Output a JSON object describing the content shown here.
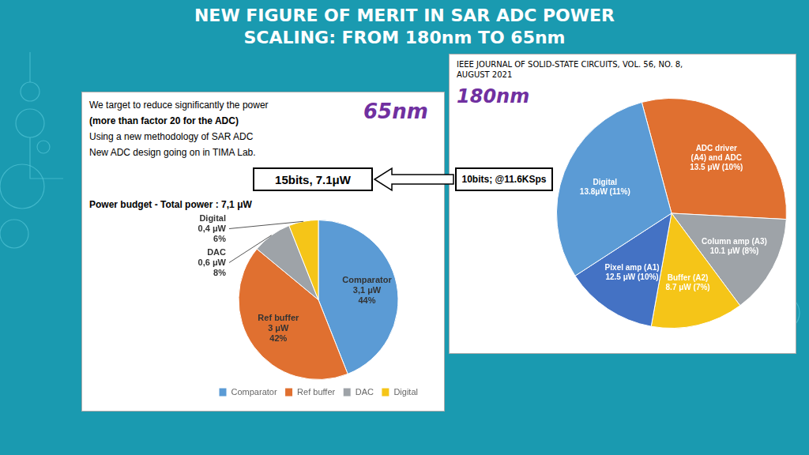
{
  "chart_data": [
    {
      "type": "pie",
      "title": "Power budget - Total power : 7,1 μW",
      "subtitle": "65nm",
      "categories": [
        "Comparator",
        "Ref buffer",
        "DAC",
        "Digital"
      ],
      "values": [
        44,
        42,
        8,
        6
      ],
      "value_labels": [
        "3,1 μW\n44%",
        "3 μW\n42%",
        "0,6 μW\n8%",
        "0,4 μW\n6%"
      ],
      "colors": [
        "#5b9bd5",
        "#e07030",
        "#9ea3a8",
        "#f5c518"
      ],
      "legend": "bottom",
      "data_labels": true,
      "annotations": [
        "NEW FIGURE OF MERIT IN SAR ADC POWER",
        "SCALING: FROM 180nm TO 65nm",
        "We target to reduce significantly the power",
        "(more than factor 20 for the ADC)",
        "Using a new methodology of SAR ADC",
        "New ADC design going on in TIMA Lab.",
        "15bits, 7.1μW"
      ]
    },
    {
      "type": "pie",
      "subtitle": "180nm",
      "categories": [
        "ADC driver\n(A4) and ADC",
        "Column amp (A3)",
        "Buffer (A2)",
        "Pixel amp (A1)",
        "Digital"
      ],
      "values": [
        30,
        14,
        13,
        13,
        30
      ],
      "value_labels": [
        "13.5 μW (10%)",
        "10.1 μW (8%)",
        "8.7 μW (7%)",
        "12.5 μW (10%)",
        "13.8μW (11%)"
      ],
      "colors": [
        "#e07030",
        "#9ea3a8",
        "#f5c518",
        "#4472c4",
        "#5b9bd5"
      ],
      "data_labels": true,
      "annotations": [
        "10bits; @11.6KSps",
        "IEEE JOURNAL OF SOLID-STATE CIRCUITS, VOL. 56, NO. 8,",
        "AUGUST 2021"
      ]
    }
  ]
}
